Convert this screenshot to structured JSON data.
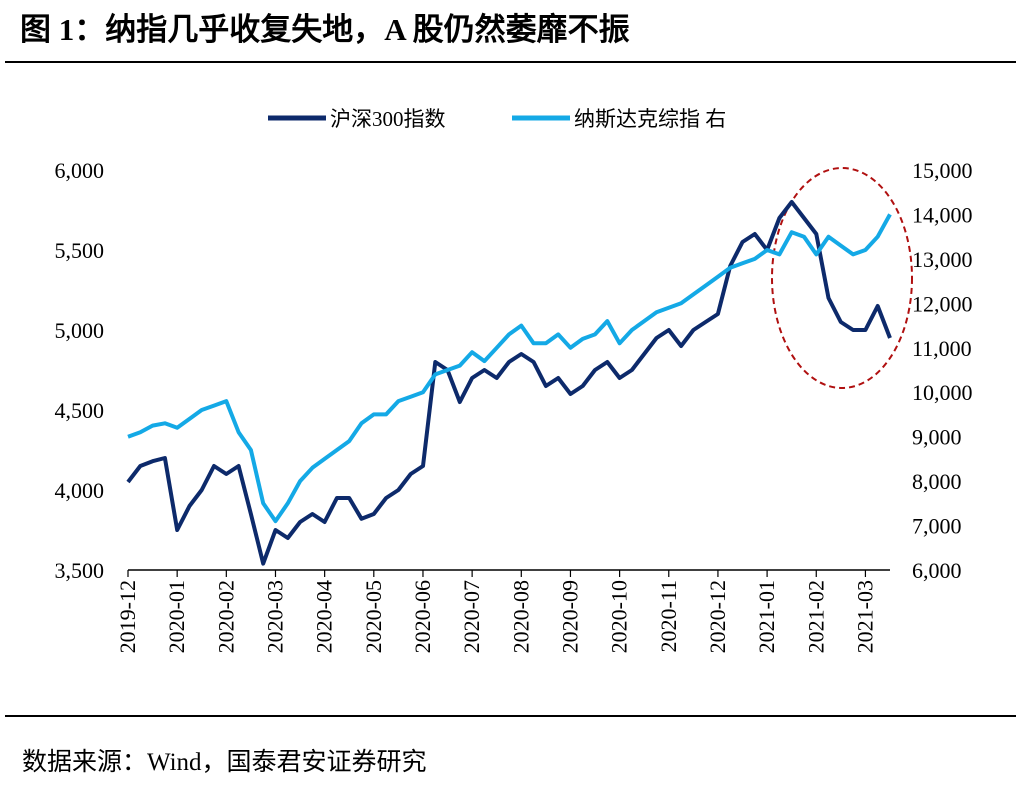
{
  "chart_data": {
    "type": "line",
    "title": "图 1：纳指几乎收复失地，A 股仍然萎靡不振",
    "source": "数据来源：Wind，国泰君安证券研究",
    "x": [
      0,
      0.25,
      0.5,
      0.75,
      1,
      1.25,
      1.5,
      1.75,
      2,
      2.25,
      2.5,
      2.75,
      3,
      3.25,
      3.5,
      3.75,
      4,
      4.25,
      4.5,
      4.75,
      5,
      5.25,
      5.5,
      5.75,
      6,
      6.25,
      6.5,
      6.75,
      7,
      7.25,
      7.5,
      7.75,
      8,
      8.25,
      8.5,
      8.75,
      9,
      9.25,
      9.5,
      9.75,
      10,
      10.25,
      10.5,
      10.75,
      11,
      11.25,
      11.5,
      11.75,
      12,
      12.25,
      12.5,
      12.75,
      13,
      13.25,
      13.5,
      13.75,
      14,
      14.25,
      14.5,
      14.75,
      15,
      15.25,
      15.5
    ],
    "xlim": [
      0,
      15.5
    ],
    "xticks": [
      {
        "value": 0,
        "label": "2019-12"
      },
      {
        "value": 1,
        "label": "2020-01"
      },
      {
        "value": 2,
        "label": "2020-02"
      },
      {
        "value": 3,
        "label": "2020-03"
      },
      {
        "value": 4,
        "label": "2020-04"
      },
      {
        "value": 5,
        "label": "2020-05"
      },
      {
        "value": 6,
        "label": "2020-06"
      },
      {
        "value": 7,
        "label": "2020-07"
      },
      {
        "value": 8,
        "label": "2020-08"
      },
      {
        "value": 9,
        "label": "2020-09"
      },
      {
        "value": 10,
        "label": "2020-10"
      },
      {
        "value": 11,
        "label": "2020-11"
      },
      {
        "value": 12,
        "label": "2020-12"
      },
      {
        "value": 13,
        "label": "2021-01"
      },
      {
        "value": 14,
        "label": "2021-02"
      },
      {
        "value": 15,
        "label": "2021-03"
      }
    ],
    "ylim": [
      3500,
      6000
    ],
    "yticks": [
      {
        "value": 3500,
        "label": "3,500"
      },
      {
        "value": 4000,
        "label": "4,000"
      },
      {
        "value": 4500,
        "label": "4,500"
      },
      {
        "value": 5000,
        "label": "5,000"
      },
      {
        "value": 5500,
        "label": "5,500"
      },
      {
        "value": 6000,
        "label": "6,000"
      }
    ],
    "y2lim": [
      6000,
      15000
    ],
    "y2ticks": [
      {
        "value": 6000,
        "label": "6,000"
      },
      {
        "value": 7000,
        "label": "7,000"
      },
      {
        "value": 8000,
        "label": "8,000"
      },
      {
        "value": 9000,
        "label": "9,000"
      },
      {
        "value": 10000,
        "label": "10,000"
      },
      {
        "value": 11000,
        "label": "11,000"
      },
      {
        "value": 12000,
        "label": "12,000"
      },
      {
        "value": 13000,
        "label": "13,000"
      },
      {
        "value": 14000,
        "label": "14,000"
      },
      {
        "value": 15000,
        "label": "15,000"
      }
    ],
    "legend": "top",
    "series": [
      {
        "name": "沪深300指数",
        "color": "#0d2a6b",
        "axis": "y",
        "values": [
          4050,
          4150,
          4180,
          4200,
          3750,
          3900,
          4000,
          4150,
          4100,
          4150,
          3850,
          3540,
          3750,
          3700,
          3800,
          3850,
          3800,
          3950,
          3950,
          3820,
          3850,
          3950,
          4000,
          4100,
          4150,
          4800,
          4750,
          4550,
          4700,
          4750,
          4700,
          4800,
          4850,
          4800,
          4650,
          4700,
          4600,
          4650,
          4750,
          4800,
          4700,
          4750,
          4850,
          4950,
          5000,
          4900,
          5000,
          5050,
          5100,
          5400,
          5550,
          5600,
          5500,
          5700,
          5800,
          5700,
          5600,
          5200,
          5050,
          5000,
          5000,
          5150,
          4950
        ]
      },
      {
        "name": "纳斯达克综指 右",
        "color": "#14a9e6",
        "axis": "y2",
        "values": [
          9000,
          9100,
          9250,
          9300,
          9200,
          9400,
          9600,
          9700,
          9800,
          9100,
          8700,
          7500,
          7100,
          7500,
          8000,
          8300,
          8500,
          8700,
          8900,
          9300,
          9500,
          9500,
          9800,
          9900,
          10000,
          10400,
          10500,
          10600,
          10900,
          10700,
          11000,
          11300,
          11500,
          11100,
          11100,
          11300,
          11000,
          11200,
          11300,
          11600,
          11100,
          11400,
          11600,
          11800,
          11900,
          12000,
          12200,
          12400,
          12600,
          12800,
          12900,
          13000,
          13200,
          13100,
          13600,
          13500,
          13100,
          13500,
          13300,
          13100,
          13200,
          13500,
          14000
        ]
      }
    ]
  }
}
